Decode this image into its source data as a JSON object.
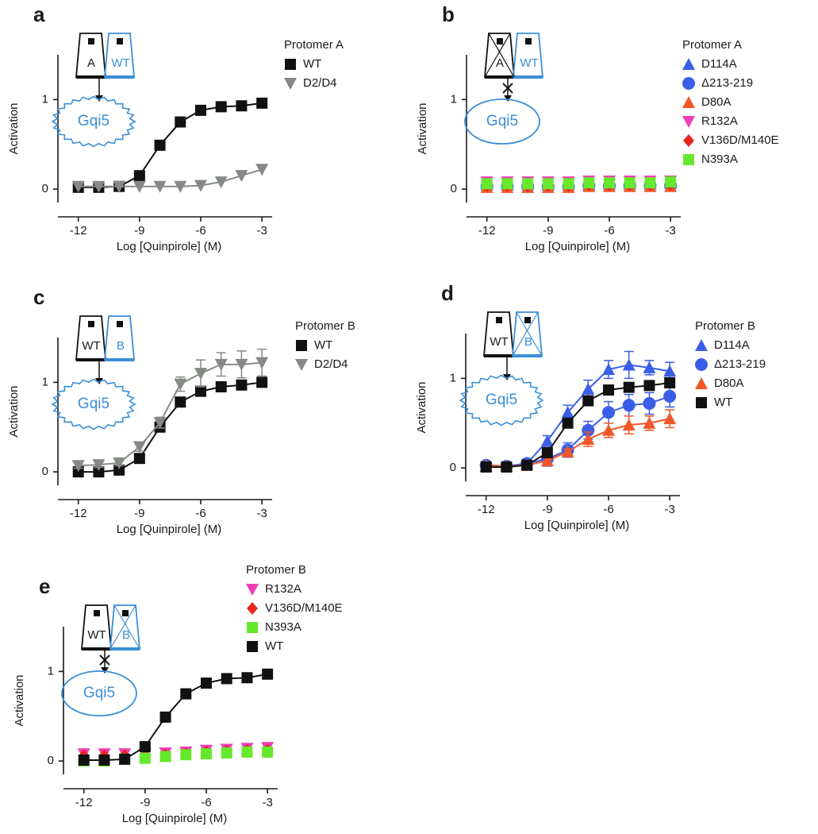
{
  "chart_data": [
    {
      "type": "line",
      "panel": "a",
      "legend_title": "Protomer A",
      "xlabel": "Log [Quinpirole] (M)",
      "ylabel": "Activation",
      "diagram": {
        "left": "A",
        "right": "WT",
        "g_protein": "Gqi5"
      },
      "x": [
        -12,
        -11,
        -10,
        -9,
        -8,
        -7,
        -6,
        -5,
        -4,
        -3
      ],
      "xlim": [
        -13,
        -2.5
      ],
      "xticks": [
        -12,
        -9,
        -6,
        -3
      ],
      "ylim": [
        -0.15,
        1.5
      ],
      "yticks": [
        0,
        1
      ],
      "series": [
        {
          "name": "WT",
          "color": "#111111",
          "marker": "square",
          "show_line": true,
          "values": [
            0.02,
            0.02,
            0.03,
            0.15,
            0.49,
            0.75,
            0.88,
            0.92,
            0.93,
            0.96
          ]
        },
        {
          "name": "D2/D4",
          "color": "#858a85",
          "marker": "triangle-down",
          "show_line": true,
          "values": [
            0.03,
            0.03,
            0.03,
            0.03,
            0.03,
            0.03,
            0.04,
            0.08,
            0.15,
            0.22
          ]
        }
      ]
    },
    {
      "type": "line",
      "panel": "b",
      "legend_title": "Protomer A",
      "xlabel": "Log [Quinpirole] (M)",
      "ylabel": "Activation",
      "diagram": {
        "left": "A",
        "right": "WT",
        "g_protein": "Gqi5"
      },
      "x": [
        -12,
        -11,
        -10,
        -9,
        -8,
        -7,
        -6,
        -5,
        -4,
        -3
      ],
      "xlim": [
        -13,
        -2.5
      ],
      "xticks": [
        -12,
        -9,
        -6,
        -3
      ],
      "ylim": [
        -0.15,
        1.5
      ],
      "yticks": [
        0,
        1
      ],
      "series": [
        {
          "name": "D114A",
          "color": "#3a5ee8",
          "marker": "triangle",
          "show_line": false,
          "values": [
            0.05,
            0.05,
            0.05,
            0.05,
            0.05,
            0.05,
            0.06,
            0.06,
            0.06,
            0.07
          ]
        },
        {
          "name": "Δ213-219",
          "color": "#3a5ee8",
          "marker": "circle",
          "show_line": false,
          "values": [
            0.03,
            0.03,
            0.03,
            0.03,
            0.03,
            0.04,
            0.04,
            0.04,
            0.04,
            0.04
          ]
        },
        {
          "name": "D80A",
          "color": "#f2572a",
          "marker": "triangle",
          "show_line": false,
          "values": [
            0.02,
            0.02,
            0.02,
            0.02,
            0.02,
            0.03,
            0.03,
            0.03,
            0.03,
            0.03
          ]
        },
        {
          "name": "R132A",
          "color": "#ee3fb4",
          "marker": "triangle-down",
          "show_line": false,
          "values": [
            0.08,
            0.08,
            0.08,
            0.08,
            0.08,
            0.09,
            0.09,
            0.09,
            0.09,
            0.09
          ]
        },
        {
          "name": "V136D/M140E",
          "color": "#e8261e",
          "marker": "diamond",
          "show_line": false,
          "values": [
            0.04,
            0.04,
            0.04,
            0.04,
            0.04,
            0.05,
            0.05,
            0.05,
            0.05,
            0.05
          ]
        },
        {
          "name": "N393A",
          "color": "#66e82c",
          "marker": "square",
          "show_line": false,
          "values": [
            0.06,
            0.06,
            0.06,
            0.06,
            0.06,
            0.07,
            0.07,
            0.07,
            0.07,
            0.08
          ]
        }
      ]
    },
    {
      "type": "line",
      "panel": "c",
      "legend_title": "Protomer B",
      "xlabel": "Log [Quinpirole] (M)",
      "ylabel": "Activation",
      "diagram": {
        "left": "WT",
        "right": "B",
        "g_protein": "Gqi5"
      },
      "x": [
        -12,
        -11,
        -10,
        -9,
        -8,
        -7,
        -6,
        -5,
        -4,
        -3
      ],
      "xlim": [
        -13,
        -2.5
      ],
      "xticks": [
        -12,
        -9,
        -6,
        -3
      ],
      "ylim": [
        -0.15,
        1.5
      ],
      "yticks": [
        0,
        1
      ],
      "series": [
        {
          "name": "WT",
          "color": "#111111",
          "marker": "square",
          "show_line": true,
          "values": [
            0,
            0,
            0.02,
            0.15,
            0.5,
            0.78,
            0.9,
            0.95,
            0.97,
            1.0
          ]
        },
        {
          "name": "D2/D4",
          "color": "#858a85",
          "marker": "triangle-down",
          "show_line": true,
          "values": [
            0.07,
            0.08,
            0.1,
            0.28,
            0.55,
            0.98,
            1.1,
            1.2,
            1.2,
            1.22
          ],
          "errors": [
            0.03,
            0.03,
            0.03,
            0.05,
            0.06,
            0.08,
            0.15,
            0.13,
            0.15,
            0.15
          ]
        }
      ]
    },
    {
      "type": "line",
      "panel": "d",
      "legend_title": "Protomer B",
      "xlabel": "Log [Quinpirole] (M)",
      "ylabel": "Activation",
      "diagram": {
        "left": "WT",
        "right": "B",
        "g_protein": "Gqi5"
      },
      "x": [
        -12,
        -11,
        -10,
        -9,
        -8,
        -7,
        -6,
        -5,
        -4,
        -3
      ],
      "xlim": [
        -13,
        -2.5
      ],
      "xticks": [
        -12,
        -9,
        -6,
        -3
      ],
      "ylim": [
        -0.15,
        1.5
      ],
      "yticks": [
        0,
        1
      ],
      "series": [
        {
          "name": "D114A",
          "color": "#3a5ee8",
          "marker": "triangle",
          "show_line": true,
          "values": [
            0.02,
            0.02,
            0.05,
            0.3,
            0.62,
            0.88,
            1.1,
            1.15,
            1.12,
            1.08
          ],
          "errors": [
            0.02,
            0.02,
            0.04,
            0.06,
            0.08,
            0.1,
            0.1,
            0.15,
            0.08,
            0.1
          ]
        },
        {
          "name": "Δ213-219",
          "color": "#3a5ee8",
          "marker": "circle",
          "show_line": true,
          "values": [
            0.03,
            0.02,
            0.05,
            0.1,
            0.2,
            0.42,
            0.62,
            0.7,
            0.72,
            0.8
          ],
          "errors": [
            0.03,
            0.03,
            0.05,
            0.08,
            0.08,
            0.1,
            0.12,
            0.12,
            0.12,
            0.12
          ]
        },
        {
          "name": "D80A",
          "color": "#f2572a",
          "marker": "triangle",
          "show_line": true,
          "values": [
            0.03,
            0.02,
            0.03,
            0.08,
            0.18,
            0.32,
            0.42,
            0.48,
            0.5,
            0.55
          ],
          "errors": [
            0.02,
            0.02,
            0.02,
            0.03,
            0.03,
            0.08,
            0.08,
            0.1,
            0.08,
            0.1
          ]
        },
        {
          "name": "WT",
          "color": "#111111",
          "marker": "square",
          "show_line": true,
          "values": [
            0.01,
            0.01,
            0.03,
            0.17,
            0.5,
            0.75,
            0.87,
            0.9,
            0.92,
            0.95
          ]
        }
      ]
    },
    {
      "type": "line",
      "panel": "e",
      "legend_title": "Protomer B",
      "xlabel": "Log [Quinpirole] (M)",
      "ylabel": "Activation",
      "diagram": {
        "left": "WT",
        "right": "B",
        "g_protein": "Gqi5"
      },
      "x": [
        -12,
        -11,
        -10,
        -9,
        -8,
        -7,
        -6,
        -5,
        -4,
        -3
      ],
      "xlim": [
        -13,
        -2.5
      ],
      "xticks": [
        -12,
        -9,
        -6,
        -3
      ],
      "ylim": [
        -0.15,
        1.5
      ],
      "yticks": [
        0,
        1
      ],
      "series": [
        {
          "name": "R132A",
          "color": "#ee3fb4",
          "marker": "triangle-down",
          "show_line": false,
          "values": [
            0.08,
            0.08,
            0.08,
            0.08,
            0.09,
            0.1,
            0.12,
            0.13,
            0.14,
            0.15
          ]
        },
        {
          "name": "V136D/M140E",
          "color": "#e8261e",
          "marker": "diamond",
          "show_line": false,
          "values": [
            0.06,
            0.06,
            0.06,
            0.06,
            0.07,
            0.08,
            0.1,
            0.11,
            0.12,
            0.12
          ]
        },
        {
          "name": "N393A",
          "color": "#66e82c",
          "marker": "square",
          "show_line": false,
          "values": [
            0,
            0,
            0.02,
            0.03,
            0.05,
            0.07,
            0.08,
            0.09,
            0.1,
            0.1
          ]
        },
        {
          "name": "WT",
          "color": "#111111",
          "marker": "square",
          "show_line": true,
          "values": [
            0.01,
            0.01,
            0.02,
            0.16,
            0.49,
            0.75,
            0.87,
            0.92,
            0.93,
            0.97
          ]
        }
      ]
    }
  ]
}
